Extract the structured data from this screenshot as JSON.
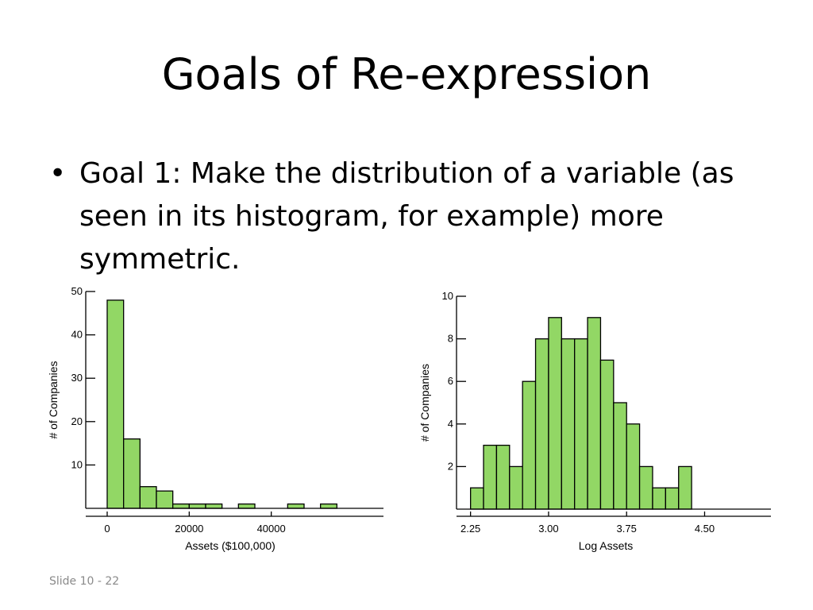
{
  "slide": {
    "title": "Goals of Re-expression",
    "bullet": "Goal 1: Make the distribution of a variable (as seen in its histogram, for example) more symmetric.",
    "footer": "Slide 10 - 22"
  },
  "colors": {
    "bar_fill": "#92d765",
    "bar_stroke": "#000000"
  },
  "chart_data": [
    {
      "type": "bar",
      "subtype": "histogram",
      "xlabel": "Assets ($100,000)",
      "ylabel": "# of Companies",
      "xlim": [
        0,
        60000
      ],
      "ylim": [
        0,
        50
      ],
      "xticks": [
        0,
        20000,
        40000
      ],
      "yticks": [
        10,
        20,
        30,
        40,
        50
      ],
      "bins": [
        {
          "start": 0,
          "end": 4000,
          "value": 48
        },
        {
          "start": 4000,
          "end": 8000,
          "value": 16
        },
        {
          "start": 8000,
          "end": 12000,
          "value": 5
        },
        {
          "start": 12000,
          "end": 16000,
          "value": 4
        },
        {
          "start": 16000,
          "end": 20000,
          "value": 1
        },
        {
          "start": 20000,
          "end": 24000,
          "value": 1
        },
        {
          "start": 24000,
          "end": 28000,
          "value": 1
        },
        {
          "start": 32000,
          "end": 36000,
          "value": 1
        },
        {
          "start": 44000,
          "end": 48000,
          "value": 1
        },
        {
          "start": 52000,
          "end": 56000,
          "value": 1
        }
      ]
    },
    {
      "type": "bar",
      "subtype": "histogram",
      "xlabel": "Log Assets",
      "ylabel": "# of Companies",
      "xlim": [
        2.1,
        5.0
      ],
      "ylim": [
        0,
        10
      ],
      "xticks": [
        "2.25",
        "3.00",
        "3.75",
        "4.50"
      ],
      "yticks": [
        2,
        4,
        6,
        8,
        10
      ],
      "bins": [
        {
          "start": 2.25,
          "end": 2.375,
          "value": 1
        },
        {
          "start": 2.375,
          "end": 2.5,
          "value": 3
        },
        {
          "start": 2.5,
          "end": 2.625,
          "value": 3
        },
        {
          "start": 2.625,
          "end": 2.75,
          "value": 2
        },
        {
          "start": 2.75,
          "end": 2.875,
          "value": 6
        },
        {
          "start": 2.875,
          "end": 3.0,
          "value": 8
        },
        {
          "start": 3.0,
          "end": 3.125,
          "value": 9
        },
        {
          "start": 3.125,
          "end": 3.25,
          "value": 8
        },
        {
          "start": 3.25,
          "end": 3.375,
          "value": 8
        },
        {
          "start": 3.375,
          "end": 3.5,
          "value": 9
        },
        {
          "start": 3.5,
          "end": 3.625,
          "value": 7
        },
        {
          "start": 3.625,
          "end": 3.75,
          "value": 5
        },
        {
          "start": 3.75,
          "end": 3.875,
          "value": 4
        },
        {
          "start": 3.875,
          "end": 4.0,
          "value": 2
        },
        {
          "start": 4.0,
          "end": 4.125,
          "value": 1
        },
        {
          "start": 4.125,
          "end": 4.25,
          "value": 1
        },
        {
          "start": 4.25,
          "end": 4.375,
          "value": 2
        }
      ]
    }
  ]
}
